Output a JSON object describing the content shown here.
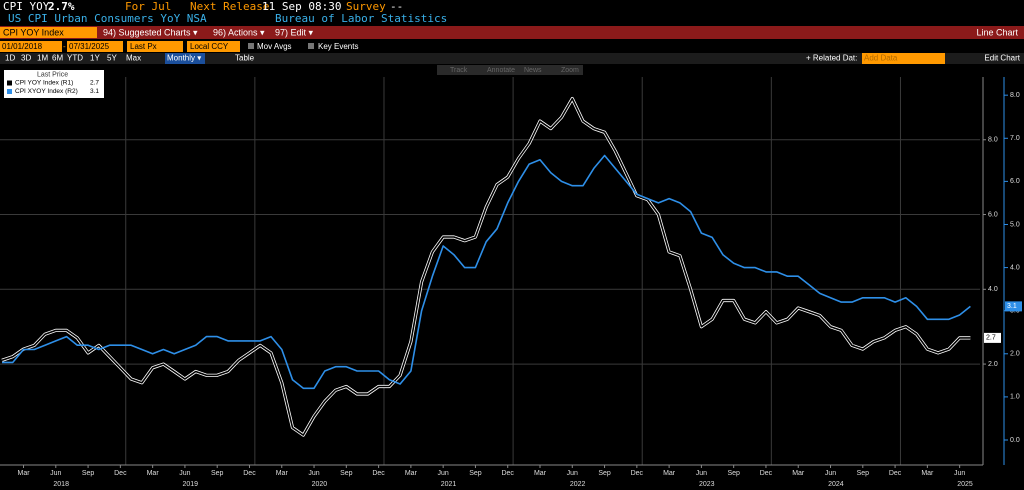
{
  "header": {
    "ticker": "CPI YOY",
    "last": "2.7%",
    "period": "For Jul",
    "release_label": "Next Release",
    "release_date": "11 Sep 08:30",
    "survey_label": "Survey",
    "survey_value": "--",
    "description": "US CPI Urban Consumers YoY NSA",
    "source": "Bureau of Labor Statistics"
  },
  "toolbar": {
    "security": "CPI YOY Index",
    "menus": [
      "94) Suggested Charts ▾",
      "96) Actions ▾",
      "97) Edit ▾"
    ],
    "chart_kind": "Line Chart",
    "start_date": "01/01/2018",
    "dash": "-",
    "end_date": "07/31/2025",
    "field": "Last Px",
    "currency": "Local CCY",
    "options": [
      "Mov Avgs",
      "Key Events"
    ],
    "ranges": [
      "1D",
      "3D",
      "1M",
      "6M",
      "YTD",
      "1Y",
      "5Y",
      "Max"
    ],
    "frequency": "Monthly ▾",
    "table": "Table",
    "related": "+ Related Dat:",
    "add_data": "Add Data",
    "edit_chart": "Edit Chart",
    "tools": [
      "Track",
      "Annotate",
      "News",
      "Zoom"
    ]
  },
  "chart_data": {
    "type": "line",
    "legend_title": "Last Price",
    "legend": "top-left",
    "x": [
      "2018-01",
      "2018-02",
      "2018-03",
      "2018-04",
      "2018-05",
      "2018-06",
      "2018-07",
      "2018-08",
      "2018-09",
      "2018-10",
      "2018-11",
      "2018-12",
      "2019-01",
      "2019-02",
      "2019-03",
      "2019-04",
      "2019-05",
      "2019-06",
      "2019-07",
      "2019-08",
      "2019-09",
      "2019-10",
      "2019-11",
      "2019-12",
      "2020-01",
      "2020-02",
      "2020-03",
      "2020-04",
      "2020-05",
      "2020-06",
      "2020-07",
      "2020-08",
      "2020-09",
      "2020-10",
      "2020-11",
      "2020-12",
      "2021-01",
      "2021-02",
      "2021-03",
      "2021-04",
      "2021-05",
      "2021-06",
      "2021-07",
      "2021-08",
      "2021-09",
      "2021-10",
      "2021-11",
      "2021-12",
      "2022-01",
      "2022-02",
      "2022-03",
      "2022-04",
      "2022-05",
      "2022-06",
      "2022-07",
      "2022-08",
      "2022-09",
      "2022-10",
      "2022-11",
      "2022-12",
      "2023-01",
      "2023-02",
      "2023-03",
      "2023-04",
      "2023-05",
      "2023-06",
      "2023-07",
      "2023-08",
      "2023-09",
      "2023-10",
      "2023-11",
      "2023-12",
      "2024-01",
      "2024-02",
      "2024-03",
      "2024-04",
      "2024-05",
      "2024-06",
      "2024-07",
      "2024-08",
      "2024-09",
      "2024-10",
      "2024-11",
      "2024-12",
      "2025-01",
      "2025-02",
      "2025-03",
      "2025-04",
      "2025-05",
      "2025-06",
      "2025-07"
    ],
    "series": [
      {
        "name": "CPI YOY Index (R1)",
        "color": "#000000",
        "axis": "y",
        "values": [
          2.1,
          2.2,
          2.4,
          2.5,
          2.8,
          2.9,
          2.9,
          2.7,
          2.3,
          2.5,
          2.2,
          1.9,
          1.6,
          1.5,
          1.9,
          2.0,
          1.8,
          1.6,
          1.8,
          1.7,
          1.7,
          1.8,
          2.1,
          2.3,
          2.5,
          2.3,
          1.5,
          0.3,
          0.1,
          0.6,
          1.0,
          1.3,
          1.4,
          1.2,
          1.2,
          1.4,
          1.4,
          1.7,
          2.6,
          4.2,
          5.0,
          5.4,
          5.4,
          5.3,
          5.4,
          6.2,
          6.8,
          7.0,
          7.5,
          7.9,
          8.5,
          8.3,
          8.6,
          9.1,
          8.5,
          8.3,
          8.2,
          7.7,
          7.1,
          6.5,
          6.4,
          6.0,
          5.0,
          4.9,
          4.0,
          3.0,
          3.2,
          3.7,
          3.7,
          3.2,
          3.1,
          3.4,
          3.1,
          3.2,
          3.5,
          3.4,
          3.3,
          3.0,
          2.9,
          2.5,
          2.4,
          2.6,
          2.7,
          2.9,
          3.0,
          2.8,
          2.4,
          2.3,
          2.4,
          2.7,
          2.7
        ]
      },
      {
        "name": "CPI XYOY Index (R2)",
        "color": "#2e8fe8",
        "axis": "y2",
        "values": [
          1.8,
          1.8,
          2.1,
          2.1,
          2.2,
          2.3,
          2.4,
          2.2,
          2.2,
          2.1,
          2.2,
          2.2,
          2.2,
          2.1,
          2.0,
          2.1,
          2.0,
          2.1,
          2.2,
          2.4,
          2.4,
          2.3,
          2.3,
          2.3,
          2.3,
          2.4,
          2.1,
          1.4,
          1.2,
          1.2,
          1.6,
          1.7,
          1.7,
          1.6,
          1.6,
          1.6,
          1.4,
          1.3,
          1.6,
          3.0,
          3.8,
          4.5,
          4.3,
          4.0,
          4.0,
          4.6,
          4.9,
          5.5,
          6.0,
          6.4,
          6.5,
          6.2,
          6.0,
          5.9,
          5.9,
          6.3,
          6.6,
          6.3,
          6.0,
          5.7,
          5.6,
          5.5,
          5.6,
          5.5,
          5.3,
          4.8,
          4.7,
          4.3,
          4.1,
          4.0,
          4.0,
          3.9,
          3.9,
          3.8,
          3.8,
          3.6,
          3.4,
          3.3,
          3.2,
          3.2,
          3.3,
          3.3,
          3.3,
          3.2,
          3.3,
          3.1,
          2.8,
          2.8,
          2.8,
          2.9,
          3.1
        ]
      }
    ],
    "ylim": [
      -0.7,
      10
    ],
    "yticks": [
      {
        "value": 2,
        "label": "2.0"
      },
      {
        "value": 4,
        "label": "4.0"
      },
      {
        "value": 6,
        "label": "6.0"
      },
      {
        "value": 8,
        "label": "8.0"
      }
    ],
    "y2lim": [
      -0.58,
      8.7
    ],
    "y2ticks": [
      {
        "value": 0,
        "label": "0.0"
      },
      {
        "value": 1,
        "label": "1.0"
      },
      {
        "value": 2,
        "label": "2.0"
      },
      {
        "value": 3,
        "label": "3.0"
      },
      {
        "value": 4,
        "label": "4.0"
      },
      {
        "value": 5,
        "label": "5.0"
      },
      {
        "value": 6,
        "label": "6.0"
      },
      {
        "value": 7,
        "label": "7.0"
      },
      {
        "value": 8,
        "label": "8.0"
      }
    ],
    "xticks": [
      {
        "value": "2018-03",
        "label": "Mar"
      },
      {
        "value": "2018-06",
        "label": "Jun"
      },
      {
        "value": "2018-09",
        "label": "Sep"
      },
      {
        "value": "2018-12",
        "label": "Dec"
      },
      {
        "value": "2019-03",
        "label": "Mar"
      },
      {
        "value": "2019-06",
        "label": "Jun"
      },
      {
        "value": "2019-09",
        "label": "Sep"
      },
      {
        "value": "2019-12",
        "label": "Dec"
      },
      {
        "value": "2020-03",
        "label": "Mar"
      },
      {
        "value": "2020-06",
        "label": "Jun"
      },
      {
        "value": "2020-09",
        "label": "Sep"
      },
      {
        "value": "2020-12",
        "label": "Dec"
      },
      {
        "value": "2021-03",
        "label": "Mar"
      },
      {
        "value": "2021-06",
        "label": "Jun"
      },
      {
        "value": "2021-09",
        "label": "Sep"
      },
      {
        "value": "2021-12",
        "label": "Dec"
      },
      {
        "value": "2022-03",
        "label": "Mar"
      },
      {
        "value": "2022-06",
        "label": "Jun"
      },
      {
        "value": "2022-09",
        "label": "Sep"
      },
      {
        "value": "2022-12",
        "label": "Dec"
      },
      {
        "value": "2023-03",
        "label": "Mar"
      },
      {
        "value": "2023-06",
        "label": "Jun"
      },
      {
        "value": "2023-09",
        "label": "Sep"
      },
      {
        "value": "2023-12",
        "label": "Dec"
      },
      {
        "value": "2024-03",
        "label": "Mar"
      },
      {
        "value": "2024-06",
        "label": "Jun"
      },
      {
        "value": "2024-09",
        "label": "Sep"
      },
      {
        "value": "2024-12",
        "label": "Dec"
      },
      {
        "value": "2025-03",
        "label": "Mar"
      },
      {
        "value": "2025-06",
        "label": "Jun"
      }
    ],
    "years": [
      "2018",
      "2019",
      "2020",
      "2021",
      "2022",
      "2023",
      "2024",
      "2025"
    ],
    "grid": true
  }
}
